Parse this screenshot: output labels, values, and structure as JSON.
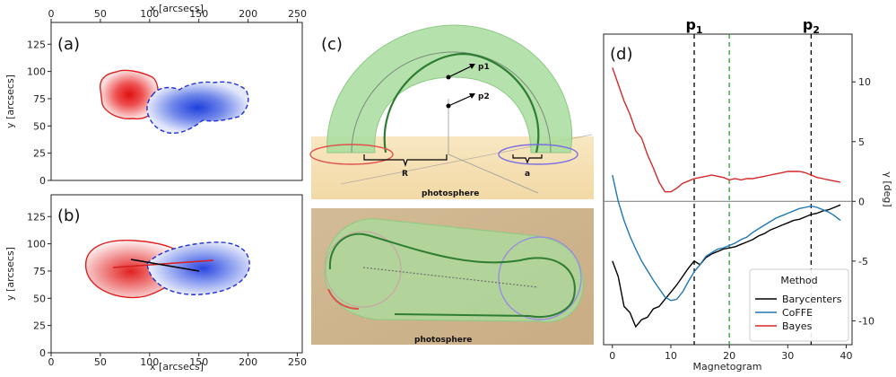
{
  "panel_a": {
    "label": "(a)",
    "xlabel_top": "x [arcsecs]",
    "ylabel": "y [arcsecs]",
    "xticks": [
      0,
      50,
      100,
      150,
      200,
      250
    ],
    "yticks": [
      0,
      25,
      50,
      75,
      100,
      125
    ],
    "xlim": [
      0,
      255
    ],
    "ylim": [
      0,
      145
    ]
  },
  "panel_b": {
    "label": "(b)",
    "xlabel": "x [arcsecs]",
    "ylabel": "y [arcsecs]",
    "xticks": [
      0,
      50,
      100,
      150,
      200,
      250
    ],
    "yticks": [
      0,
      25,
      50,
      75,
      100,
      125
    ],
    "xlim": [
      0,
      255
    ],
    "ylim": [
      0,
      145
    ]
  },
  "panel_c": {
    "label": "(c)",
    "p1": "p1",
    "p2": "p2",
    "R": "R",
    "a": "a",
    "photosphere_top": "photosphere",
    "photosphere_bottom": "photosphere"
  },
  "chart_data": {
    "type": "line",
    "label": "(d)",
    "xlabel": "Magnetogram",
    "ylabel": "γ [deg]",
    "xlim": [
      -1.5,
      41
    ],
    "ylim": [
      -12,
      14
    ],
    "xticks": [
      0,
      10,
      20,
      30,
      40
    ],
    "yticks": [
      -10,
      -5,
      0,
      5,
      10
    ],
    "vlines": [
      {
        "x": 14,
        "label": "p1",
        "color": "#000000",
        "style": "dashed"
      },
      {
        "x": 20,
        "label": "",
        "color": "#2ca02c",
        "style": "dashed"
      },
      {
        "x": 34,
        "label": "p2",
        "color": "#000000",
        "style": "dashed"
      }
    ],
    "hline": 0,
    "legend": {
      "title": "Method",
      "placement": "bottom-right"
    },
    "series": [
      {
        "name": "Barycenters",
        "color": "#000000",
        "x": [
          0,
          1,
          2,
          3,
          4,
          5,
          6,
          7,
          8,
          9,
          10,
          11,
          12,
          13,
          14,
          15,
          16,
          17,
          18,
          19,
          20,
          21,
          22,
          23,
          24,
          25,
          26,
          27,
          28,
          29,
          30,
          31,
          32,
          33,
          34,
          35,
          36,
          37,
          38,
          39
        ],
        "y": [
          -5.0,
          -6.3,
          -8.8,
          -9.3,
          -10.5,
          -9.9,
          -9.7,
          -9.0,
          -8.8,
          -8.2,
          -7.6,
          -7.0,
          -6.3,
          -5.6,
          -5.0,
          -5.3,
          -4.7,
          -4.4,
          -4.2,
          -4.0,
          -3.9,
          -3.8,
          -3.6,
          -3.4,
          -3.2,
          -2.9,
          -2.7,
          -2.4,
          -2.2,
          -2.0,
          -1.8,
          -1.6,
          -1.5,
          -1.3,
          -1.1,
          -1.0,
          -0.8,
          -0.7,
          -0.5,
          -0.3
        ]
      },
      {
        "name": "CoFFE",
        "color": "#1f77b4",
        "x": [
          0,
          1,
          2,
          3,
          4,
          5,
          6,
          7,
          8,
          9,
          10,
          11,
          12,
          13,
          14,
          15,
          16,
          17,
          18,
          19,
          20,
          21,
          22,
          23,
          24,
          25,
          26,
          27,
          28,
          29,
          30,
          31,
          32,
          33,
          34,
          35,
          36,
          37,
          38,
          39
        ],
        "y": [
          2.2,
          0.0,
          -1.6,
          -2.9,
          -4.0,
          -5.0,
          -5.8,
          -6.6,
          -7.3,
          -8.0,
          -8.3,
          -8.2,
          -7.6,
          -6.7,
          -5.9,
          -5.3,
          -4.6,
          -4.3,
          -4.0,
          -3.9,
          -3.7,
          -3.5,
          -3.2,
          -3.0,
          -2.6,
          -2.3,
          -2.0,
          -1.7,
          -1.4,
          -1.2,
          -1.0,
          -0.8,
          -0.6,
          -0.5,
          -0.4,
          -0.5,
          -0.7,
          -0.9,
          -1.2,
          -1.6
        ]
      },
      {
        "name": "Bayes",
        "color": "#d62728",
        "x": [
          0,
          1,
          2,
          3,
          4,
          5,
          6,
          7,
          8,
          9,
          10,
          11,
          12,
          13,
          14,
          15,
          16,
          17,
          18,
          19,
          20,
          21,
          22,
          23,
          24,
          25,
          26,
          27,
          28,
          29,
          30,
          31,
          32,
          33,
          34,
          35,
          36,
          37,
          38,
          39
        ],
        "y": [
          11.2,
          9.8,
          8.4,
          7.3,
          5.9,
          5.3,
          3.9,
          2.8,
          1.6,
          0.8,
          0.8,
          1.1,
          1.5,
          1.7,
          1.9,
          2.0,
          2.1,
          2.2,
          2.1,
          2.0,
          1.8,
          1.9,
          1.8,
          1.9,
          1.9,
          2.0,
          2.1,
          2.2,
          2.3,
          2.4,
          2.5,
          2.5,
          2.5,
          2.4,
          2.2,
          2.0,
          1.9,
          1.8,
          1.7,
          1.6
        ]
      }
    ]
  }
}
